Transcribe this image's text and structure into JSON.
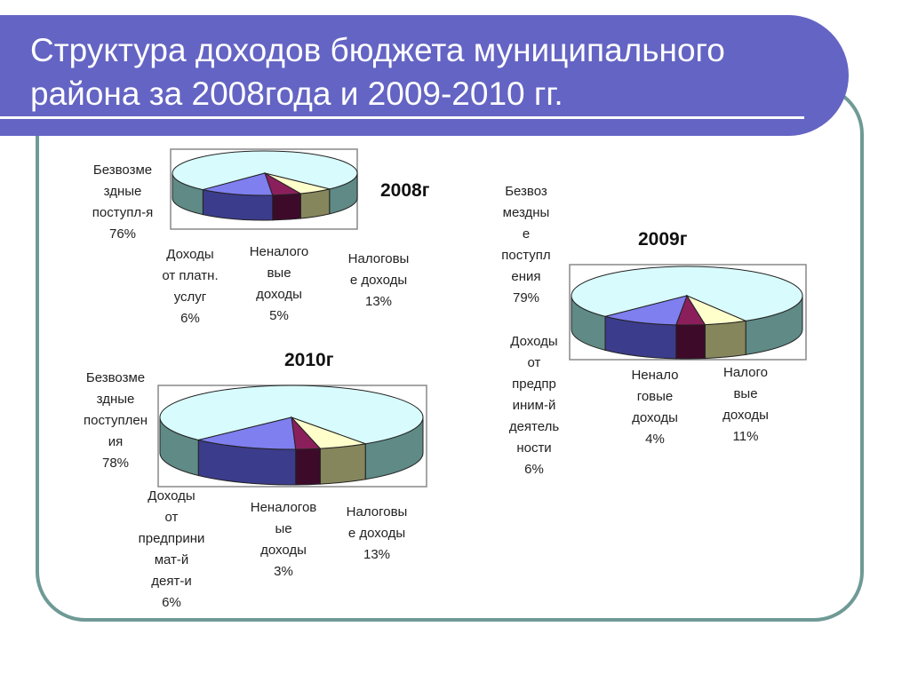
{
  "slide": {
    "title": "Структура доходов бюджета муниципального района за  2008года  и 2009-2010 гг."
  },
  "colors": {
    "title_bar": "#6464c4",
    "frame_border": "#6f9a96",
    "slice_top": [
      "#d8fbfd",
      "#ffffcc",
      "#8b1f5c",
      "#7f7ff0"
    ],
    "slice_side": [
      "#5f8a86",
      "#86865c",
      "#3d0a2a",
      "#3c3c8c"
    ]
  },
  "chart_data": [
    {
      "type": "pie",
      "title": "2008г",
      "slices": [
        {
          "label": "Безвозме\nздные\nпоступл-я\n76%",
          "category": "Безвозмездные поступл-я",
          "value": 76
        },
        {
          "label": "Доходы\nот платн.\nуслуг\n6%",
          "category": "Доходы от платн. услуг",
          "value": 6
        },
        {
          "label": "Неналого\nвые\nдоходы\n5%",
          "category": "Неналоговые доходы",
          "value": 5
        },
        {
          "label": "Налоговы\nе доходы\n13%",
          "category": "Налоговые доходы",
          "value": 13
        }
      ]
    },
    {
      "type": "pie",
      "title": "2009г",
      "slices": [
        {
          "label": "Безвоз\nмездны\nе\nпоступл\nения\n79%",
          "category": "Безвозмездные поступления",
          "value": 79
        },
        {
          "label": "Доходы\nот\nпредпр\nиним-й\nдеятель\nности\n6%",
          "category": "Доходы от предприним-й деятельности",
          "value": 6
        },
        {
          "label": "Ненало\nговые\nдоходы\n4%",
          "category": "Неналоговые доходы",
          "value": 4
        },
        {
          "label": "Налого\nвые\nдоходы\n11%",
          "category": "Налоговые доходы",
          "value": 11
        }
      ]
    },
    {
      "type": "pie",
      "title": "2010г",
      "slices": [
        {
          "label": "Безвозме\nздные\nпоступлен\nия\n78%",
          "category": "Безвозмездные поступления",
          "value": 78
        },
        {
          "label": "Доходы\nот\nпредприни\nмат-й\nдеят-и\n6%",
          "category": "Доходы от предпринимат-й деят-и",
          "value": 6
        },
        {
          "label": "Неналогов\nые\nдоходы\n3%",
          "category": "Неналоговые доходы",
          "value": 3
        },
        {
          "label": "Налоговы\nе доходы\n13%",
          "category": "Налоговые доходы",
          "value": 13
        }
      ]
    }
  ]
}
